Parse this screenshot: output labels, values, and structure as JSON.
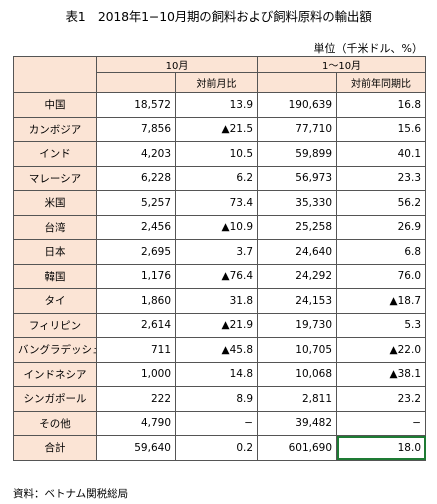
{
  "title": "表1　2018年1−10月期の飼料および飼料原料の輸出額",
  "unit": "単位（千米ドル、%）",
  "headers": {
    "period_oct": "10月",
    "period_ytd": "1〜10月",
    "yoy_month": "対前月比",
    "yoy_year": "対前年同期比"
  },
  "rows": [
    {
      "name": "中国",
      "oct": "18,572",
      "mom": "13.9",
      "ytd": "190,639",
      "yoy": "16.8"
    },
    {
      "name": "カンボジア",
      "oct": "7,856",
      "mom": "▲21.5",
      "ytd": "77,710",
      "yoy": "15.6"
    },
    {
      "name": "インド",
      "oct": "4,203",
      "mom": "10.5",
      "ytd": "59,899",
      "yoy": "40.1"
    },
    {
      "name": "マレーシア",
      "oct": "6,228",
      "mom": "6.2",
      "ytd": "56,973",
      "yoy": "23.3"
    },
    {
      "name": "米国",
      "oct": "5,257",
      "mom": "73.4",
      "ytd": "35,330",
      "yoy": "56.2"
    },
    {
      "name": "台湾",
      "oct": "2,456",
      "mom": "▲10.9",
      "ytd": "25,258",
      "yoy": "26.9"
    },
    {
      "name": "日本",
      "oct": "2,695",
      "mom": "3.7",
      "ytd": "24,640",
      "yoy": "6.8"
    },
    {
      "name": "韓国",
      "oct": "1,176",
      "mom": "▲76.4",
      "ytd": "24,292",
      "yoy": "76.0"
    },
    {
      "name": "タイ",
      "oct": "1,860",
      "mom": "31.8",
      "ytd": "24,153",
      "yoy": "▲18.7"
    },
    {
      "name": "フィリピン",
      "oct": "2,614",
      "mom": "▲21.9",
      "ytd": "19,730",
      "yoy": "5.3"
    },
    {
      "name": "バングラデッシュ",
      "oct": "711",
      "mom": "▲45.8",
      "ytd": "10,705",
      "yoy": "▲22.0"
    },
    {
      "name": "インドネシア",
      "oct": "1,000",
      "mom": "14.8",
      "ytd": "10,068",
      "yoy": "▲38.1"
    },
    {
      "name": "シンガポール",
      "oct": "222",
      "mom": "8.9",
      "ytd": "2,811",
      "yoy": "23.2"
    },
    {
      "name": "その他",
      "oct": "4,790",
      "mom": "−",
      "ytd": "39,482",
      "yoy": "−"
    },
    {
      "name": "合計",
      "oct": "59,640",
      "mom": "0.2",
      "ytd": "601,690",
      "yoy": "18.0"
    }
  ],
  "source": "資料：ベトナム関税総局"
}
